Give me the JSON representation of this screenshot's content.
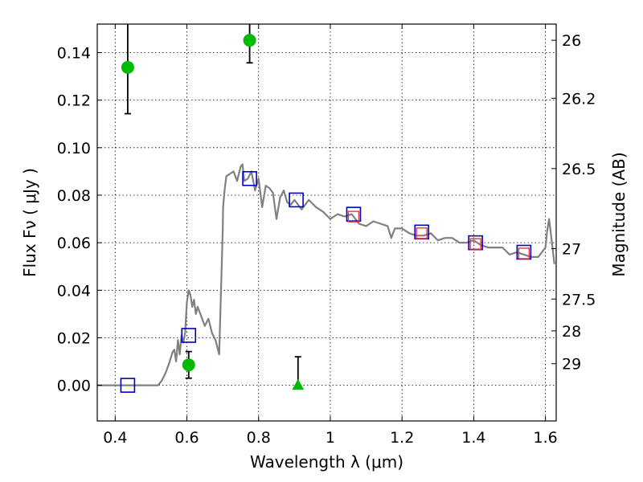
{
  "chart_data": {
    "type": "scatter",
    "xlabel": "Wavelength  λ (μm)",
    "ylabel": "Flux  Fν  ( μJy )",
    "ylabel_right": "Magnitude (AB)",
    "xlim": [
      0.35,
      1.63
    ],
    "ylim": [
      -0.015,
      0.152
    ],
    "grid": true,
    "x_ticks": [
      0.4,
      0.6,
      0.8,
      1.0,
      1.2,
      1.4,
      1.6
    ],
    "x_tick_labels": [
      "0.4",
      "0.6",
      "0.8",
      "1",
      "1.2",
      "1.4",
      "1.6"
    ],
    "y_ticks": [
      0.0,
      0.02,
      0.04,
      0.06,
      0.08,
      0.1,
      0.12,
      0.14
    ],
    "y_tick_labels": [
      "0.00",
      "0.02",
      "0.04",
      "0.06",
      "0.08",
      "0.10",
      "0.12",
      "0.14"
    ],
    "right_ticks": [
      {
        "flux": 0.1452,
        "label": "26"
      },
      {
        "flux": 0.1208,
        "label": "26.2"
      },
      {
        "flux": 0.0912,
        "label": "26.5"
      },
      {
        "flux": 0.0575,
        "label": "27"
      },
      {
        "flux": 0.0363,
        "label": "27.5"
      },
      {
        "flux": 0.0229,
        "label": "28"
      },
      {
        "flux": 0.0091,
        "label": "29"
      }
    ],
    "series": [
      {
        "kind": "line",
        "color": "#808080",
        "x": [
          0.35,
          0.52,
          0.53,
          0.54,
          0.55,
          0.56,
          0.565,
          0.57,
          0.575,
          0.58,
          0.585,
          0.59,
          0.595,
          0.6,
          0.605,
          0.61,
          0.615,
          0.62,
          0.625,
          0.63,
          0.64,
          0.65,
          0.66,
          0.67,
          0.68,
          0.69,
          0.7,
          0.701,
          0.705,
          0.71,
          0.72,
          0.73,
          0.74,
          0.75,
          0.755,
          0.76,
          0.77,
          0.78,
          0.79,
          0.8,
          0.81,
          0.82,
          0.83,
          0.84,
          0.85,
          0.86,
          0.87,
          0.88,
          0.89,
          0.9,
          0.92,
          0.94,
          0.96,
          0.98,
          1.0,
          1.02,
          1.04,
          1.06,
          1.08,
          1.1,
          1.12,
          1.14,
          1.16,
          1.17,
          1.18,
          1.2,
          1.22,
          1.24,
          1.26,
          1.28,
          1.3,
          1.32,
          1.34,
          1.36,
          1.38,
          1.4,
          1.42,
          1.44,
          1.46,
          1.48,
          1.5,
          1.52,
          1.54,
          1.56,
          1.58,
          1.6,
          1.605,
          1.61,
          1.615,
          1.625
        ],
        "y": [
          0,
          0,
          0.002,
          0.005,
          0.009,
          0.014,
          0.015,
          0.01,
          0.019,
          0.013,
          0.021,
          0.018,
          0.022,
          0.035,
          0.04,
          0.038,
          0.033,
          0.036,
          0.03,
          0.033,
          0.029,
          0.025,
          0.028,
          0.022,
          0.019,
          0.013,
          0.065,
          0.075,
          0.082,
          0.088,
          0.089,
          0.09,
          0.086,
          0.092,
          0.093,
          0.086,
          0.087,
          0.09,
          0.082,
          0.087,
          0.075,
          0.084,
          0.083,
          0.081,
          0.07,
          0.079,
          0.082,
          0.077,
          0.076,
          0.078,
          0.074,
          0.078,
          0.075,
          0.073,
          0.07,
          0.072,
          0.071,
          0.072,
          0.068,
          0.067,
          0.069,
          0.068,
          0.067,
          0.062,
          0.066,
          0.066,
          0.064,
          0.063,
          0.063,
          0.064,
          0.061,
          0.062,
          0.062,
          0.06,
          0.06,
          0.061,
          0.059,
          0.058,
          0.058,
          0.058,
          0.055,
          0.056,
          0.055,
          0.054,
          0.054,
          0.058,
          0.065,
          0.07,
          0.064,
          0.051
        ]
      },
      {
        "kind": "markers",
        "marker": "circle",
        "color": "#00bb00",
        "points": [
          {
            "x": 0.435,
            "y": 0.1338,
            "err_low": 0.0195,
            "err_high": 0.0195
          },
          {
            "x": 0.605,
            "y": 0.0086,
            "err_low": 0.0056,
            "err_high": 0.0056
          },
          {
            "x": 0.775,
            "y": 0.1452,
            "err_low": 0.0095,
            "err_high": 0.0095
          }
        ]
      },
      {
        "kind": "markers",
        "marker": "triangle",
        "color": "#00bb00",
        "points": [
          {
            "x": 0.91,
            "y": 0.0,
            "err_low": 0.0,
            "err_high": 0.012
          }
        ]
      },
      {
        "kind": "markers",
        "marker": "open-square",
        "color": "#0000cc",
        "points": [
          {
            "x": 0.435,
            "y": 0.0
          },
          {
            "x": 0.605,
            "y": 0.021
          },
          {
            "x": 0.775,
            "y": 0.087
          },
          {
            "x": 0.905,
            "y": 0.078
          },
          {
            "x": 1.065,
            "y": 0.072
          },
          {
            "x": 1.255,
            "y": 0.0645
          },
          {
            "x": 1.405,
            "y": 0.06
          },
          {
            "x": 1.54,
            "y": 0.056
          }
        ]
      },
      {
        "kind": "markers",
        "marker": "open-square",
        "color": "#ee3333",
        "points": [
          {
            "x": 1.065,
            "y": 0.071
          },
          {
            "x": 1.255,
            "y": 0.064
          },
          {
            "x": 1.405,
            "y": 0.0595
          },
          {
            "x": 1.54,
            "y": 0.0555
          }
        ]
      }
    ]
  }
}
